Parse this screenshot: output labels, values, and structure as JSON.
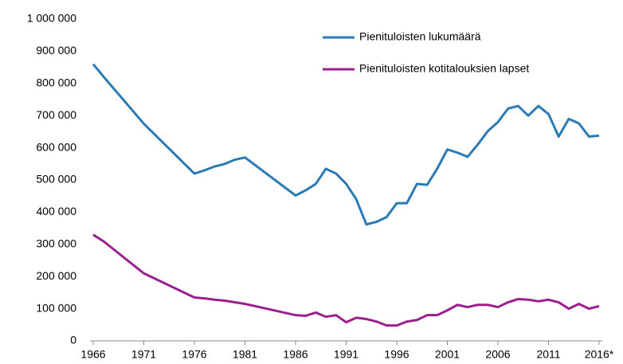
{
  "chart_data": {
    "type": "line",
    "x": [
      1966,
      1967,
      1971,
      1976,
      1977,
      1978,
      1979,
      1980,
      1981,
      1986,
      1987,
      1988,
      1989,
      1990,
      1991,
      1992,
      1993,
      1994,
      1995,
      1996,
      1997,
      1998,
      1999,
      2000,
      2001,
      2002,
      2003,
      2004,
      2005,
      2006,
      2007,
      2008,
      2009,
      2010,
      2011,
      2012,
      2013,
      2014,
      2015,
      2016
    ],
    "series": [
      {
        "name": "Pienituloisten lukumäärä",
        "color": "#2a7ab5",
        "values": [
          860000,
          822000,
          675000,
          520000,
          530000,
          542000,
          550000,
          563000,
          570000,
          452000,
          468000,
          488000,
          535000,
          520000,
          488000,
          440000,
          362000,
          370000,
          385000,
          428000,
          428000,
          488000,
          485000,
          535000,
          595000,
          585000,
          572000,
          610000,
          652000,
          680000,
          722000,
          730000,
          700000,
          730000,
          705000,
          635000,
          690000,
          676000,
          635000,
          638000
        ]
      },
      {
        "name": "Pienituloisten kotitalouksien lapset",
        "color": "#9c1f8f",
        "values": [
          330000,
          310000,
          210000,
          135000,
          132000,
          128000,
          125000,
          120000,
          115000,
          80000,
          78000,
          88000,
          75000,
          80000,
          58000,
          72000,
          68000,
          60000,
          48000,
          48000,
          60000,
          65000,
          80000,
          80000,
          95000,
          112000,
          105000,
          112000,
          112000,
          105000,
          120000,
          130000,
          128000,
          123000,
          128000,
          120000,
          100000,
          115000,
          100000,
          108000
        ]
      }
    ],
    "xlim": [
      1966,
      2016
    ],
    "xticks": [
      1966,
      1971,
      1976,
      1981,
      1986,
      1991,
      1996,
      2001,
      2006,
      2011,
      {
        "value": 2016,
        "label": "2016*"
      }
    ],
    "ylim": [
      0,
      1000000
    ],
    "yticks": [
      0,
      {
        "value": 100000,
        "label": "100 000"
      },
      {
        "value": 200000,
        "label": "200 000"
      },
      {
        "value": 300000,
        "label": "300 000"
      },
      {
        "value": 400000,
        "label": "400 000"
      },
      {
        "value": 500000,
        "label": "500 000"
      },
      {
        "value": 600000,
        "label": "600 000"
      },
      {
        "value": 700000,
        "label": "700 000"
      },
      {
        "value": 800000,
        "label": "800 000"
      },
      {
        "value": 900000,
        "label": "900 000"
      },
      {
        "value": 1000000,
        "label": "1 000 000"
      }
    ],
    "grid": false,
    "legend": "top-right"
  }
}
